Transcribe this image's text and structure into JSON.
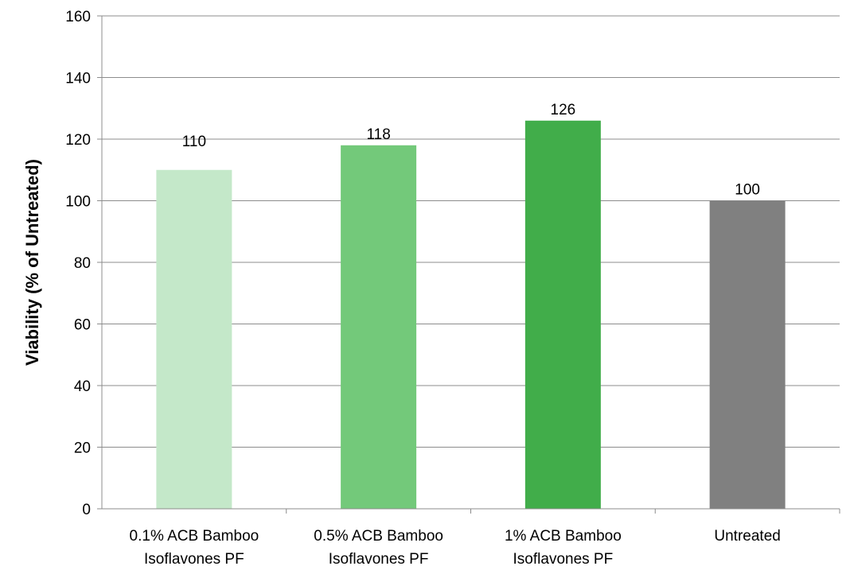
{
  "chart_data": {
    "type": "bar",
    "title": "",
    "xlabel": "",
    "ylabel": "Viability (% of Untreated)",
    "ylim": [
      0,
      160
    ],
    "yticks": [
      0,
      20,
      40,
      60,
      80,
      100,
      120,
      140,
      160
    ],
    "grid": true,
    "legend": "none",
    "categories": [
      [
        "0.1% ACB Bamboo",
        "Isoflavones PF"
      ],
      [
        "0.5% ACB Bamboo",
        "Isoflavones PF"
      ],
      [
        "1% ACB Bamboo",
        "Isoflavones PF"
      ],
      [
        "Untreated"
      ]
    ],
    "values": [
      110,
      118,
      126,
      100
    ],
    "data_labels": [
      "110",
      "118",
      "126",
      "100"
    ],
    "colors": [
      "#c4e8c9",
      "#73c97a",
      "#41ad4a",
      "#808080"
    ],
    "gridline_color": "#8c8c8c",
    "axis_color": "#8c8c8c"
  }
}
